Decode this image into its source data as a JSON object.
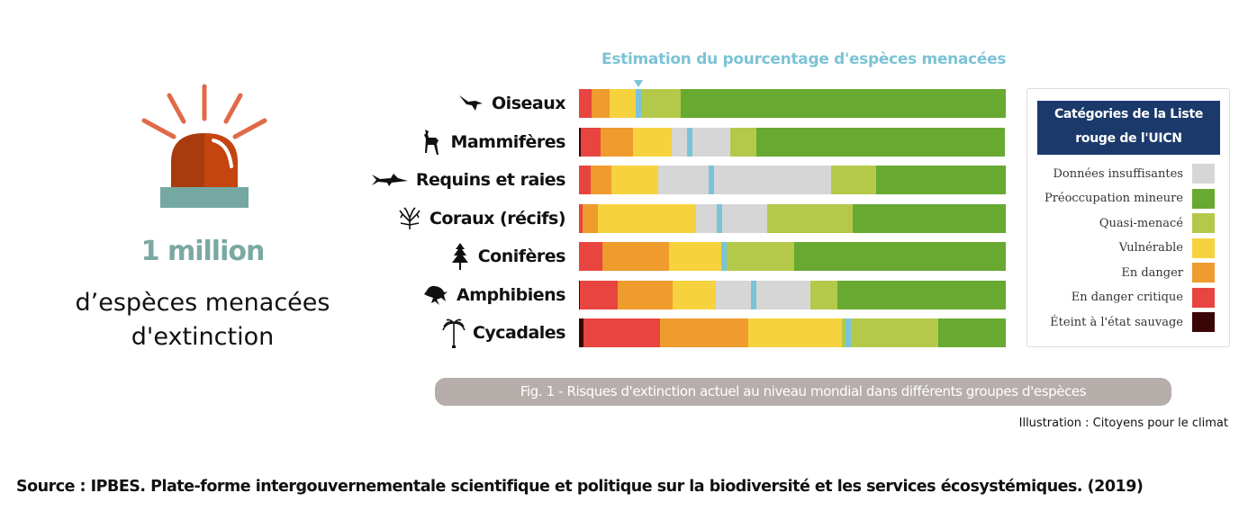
{
  "stat": {
    "value": "1 million",
    "description_line1": "d’espèces menacées",
    "description_line2": "d'extinction",
    "icon": "alarm-light-icon"
  },
  "chart_data": {
    "type": "bar",
    "orientation": "horizontal-stacked-100",
    "title": "Estimation du pourcentage d'espèces menacées",
    "caption": "Fig. 1 - Risques d'extinction actuel au niveau mondial dans différents groupes d'espèces",
    "xlabel": "",
    "ylabel": "",
    "xlim": [
      0,
      100
    ],
    "unit": "%",
    "legend_title_line1": "Catégories de la Liste",
    "legend_title_line2": "rouge de l'UICN",
    "legend_position": "right",
    "categories": [
      "Oiseaux",
      "Mammifères",
      "Requins et raies",
      "Coraux (récifs)",
      "Conifères",
      "Amphibiens",
      "Cycadales"
    ],
    "category_icons": [
      "bird-icon",
      "deer-icon",
      "shark-icon",
      "coral-icon",
      "conifer-icon",
      "frog-icon",
      "palm-icon"
    ],
    "stack_order": [
      "EX",
      "CR",
      "EN",
      "VU",
      "DD",
      "NT",
      "LC"
    ],
    "series": [
      {
        "key": "EX",
        "name": "Éteint à l'état sauvage",
        "color": "#3a0606",
        "values": [
          0,
          0.4,
          0,
          0,
          0,
          0.2,
          1.1
        ]
      },
      {
        "key": "CR",
        "name": "En danger critique",
        "color": "#e84440",
        "values": [
          3.0,
          4.6,
          2.7,
          0.8,
          5.5,
          8.9,
          17.9
        ]
      },
      {
        "key": "EN",
        "name": "En danger",
        "color": "#ef9b2d",
        "values": [
          4.2,
          7.6,
          4.9,
          3.6,
          15.6,
          12.9,
          20.7
        ]
      },
      {
        "key": "VU",
        "name": "Vulnérable",
        "color": "#f6d33e",
        "values": [
          6.5,
          9.1,
          11.0,
          23.0,
          12.2,
          10.1,
          21.9
        ]
      },
      {
        "key": "DD",
        "name": "Données insuffisantes",
        "color": "#d6d6d6",
        "values": [
          0,
          13.7,
          40.5,
          16.7,
          0,
          22.2,
          0
        ]
      },
      {
        "key": "NT",
        "name": "Quasi-menacé",
        "color": "#b4c94a",
        "values": [
          10.1,
          6.1,
          10.5,
          20.0,
          17.1,
          6.3,
          22.6
        ]
      },
      {
        "key": "LC",
        "name": "Préoccupation mineure",
        "color": "#68a932",
        "values": [
          76.2,
          58.4,
          30.4,
          35.9,
          49.6,
          39.4,
          15.8
        ]
      }
    ],
    "threatened_estimate": {
      "name": "Estimation du pourcentage d'espèces menacées",
      "color": "#7ac4d8",
      "values": [
        14,
        26,
        31,
        33,
        34,
        41,
        63
      ]
    },
    "legend": [
      {
        "label": "Données insuffisantes",
        "color": "#d6d6d6"
      },
      {
        "label": "Préoccupation mineure",
        "color": "#68a932"
      },
      {
        "label": "Quasi-menacé",
        "color": "#b4c94a"
      },
      {
        "label": "Vulnérable",
        "color": "#f6d33e"
      },
      {
        "label": "En danger",
        "color": "#ef9b2d"
      },
      {
        "label": "En danger critique",
        "color": "#e84440"
      },
      {
        "label": "Éteint à l'état sauvage",
        "color": "#3a0606"
      }
    ]
  },
  "credit": "Illustration : Citoyens pour le climat",
  "source": "Source : IPBES. Plate-forme intergouvernementale scientifique et politique sur la biodiversité et les services écosystémiques. (2019)"
}
